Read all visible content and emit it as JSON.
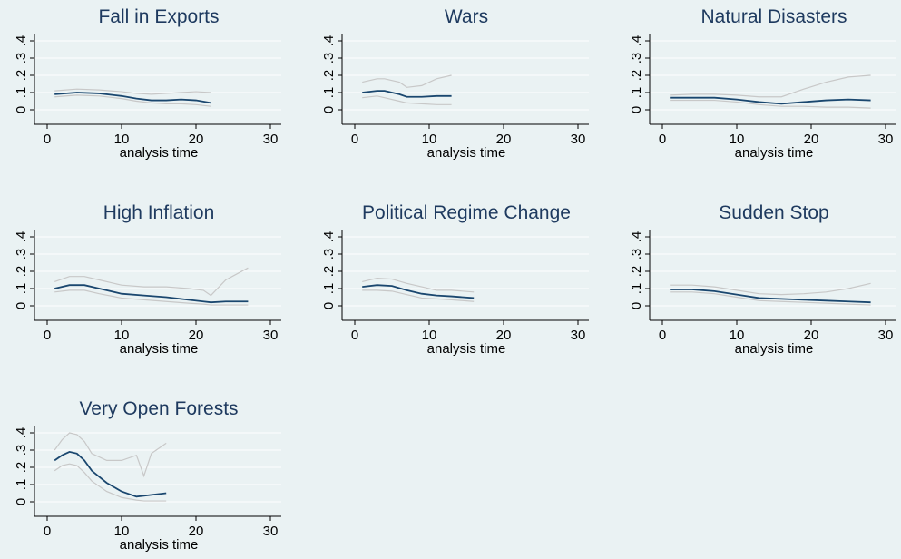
{
  "chart_data": [
    {
      "type": "line",
      "title": "Fall in Exports",
      "xlabel": "analysis time",
      "x": [
        1,
        4,
        7,
        10,
        12,
        14,
        16,
        18,
        20,
        22
      ],
      "series": [
        {
          "color": "#1a476f",
          "values": [
            0.09,
            0.1,
            0.095,
            0.08,
            0.065,
            0.055,
            0.055,
            0.06,
            0.055,
            0.04
          ]
        },
        {
          "color": "#c8c8c8",
          "values": [
            0.11,
            0.12,
            0.115,
            0.105,
            0.095,
            0.09,
            0.095,
            0.1,
            0.105,
            0.1
          ]
        },
        {
          "color": "#c8c8c8",
          "values": [
            0.075,
            0.085,
            0.08,
            0.065,
            0.05,
            0.04,
            0.035,
            0.035,
            0.03,
            0.02
          ]
        }
      ],
      "xlim": [
        0,
        30
      ],
      "xticks": [
        0,
        10,
        20,
        30
      ],
      "ylim": [
        0,
        0.4
      ],
      "yticks": [
        0,
        {
          "value": 0.1,
          "label": ".1"
        },
        {
          "value": 0.2,
          "label": ".2"
        },
        {
          "value": 0.3,
          "label": ".3"
        },
        {
          "value": 0.4,
          "label": ".4"
        }
      ],
      "grid": true
    },
    {
      "type": "line",
      "title": "Wars",
      "xlabel": "analysis time",
      "x": [
        1,
        3,
        4,
        6,
        7,
        9,
        11,
        13
      ],
      "series": [
        {
          "color": "#1a476f",
          "values": [
            0.1,
            0.11,
            0.11,
            0.09,
            0.075,
            0.075,
            0.08,
            0.08
          ]
        },
        {
          "color": "#c8c8c8",
          "values": [
            0.16,
            0.18,
            0.18,
            0.16,
            0.13,
            0.14,
            0.18,
            0.2
          ]
        },
        {
          "color": "#c8c8c8",
          "values": [
            0.07,
            0.08,
            0.07,
            0.05,
            0.04,
            0.035,
            0.03,
            0.03
          ]
        }
      ],
      "xlim": [
        0,
        30
      ],
      "xticks": [
        0,
        10,
        20,
        30
      ],
      "ylim": [
        0,
        0.4
      ],
      "yticks": [
        0,
        {
          "value": 0.1,
          "label": ".1"
        },
        {
          "value": 0.2,
          "label": ".2"
        },
        {
          "value": 0.3,
          "label": ".3"
        },
        {
          "value": 0.4,
          "label": ".4"
        }
      ],
      "grid": true
    },
    {
      "type": "line",
      "title": "Natural Disasters",
      "xlabel": "analysis time",
      "x": [
        1,
        4,
        7,
        10,
        13,
        16,
        19,
        22,
        25,
        28
      ],
      "series": [
        {
          "color": "#1a476f",
          "values": [
            0.07,
            0.07,
            0.07,
            0.06,
            0.045,
            0.035,
            0.045,
            0.055,
            0.06,
            0.055
          ]
        },
        {
          "color": "#c8c8c8",
          "values": [
            0.085,
            0.09,
            0.09,
            0.085,
            0.075,
            0.075,
            0.12,
            0.16,
            0.19,
            0.2
          ]
        },
        {
          "color": "#c8c8c8",
          "values": [
            0.055,
            0.055,
            0.055,
            0.045,
            0.03,
            0.02,
            0.02,
            0.015,
            0.015,
            0.01
          ]
        }
      ],
      "xlim": [
        0,
        30
      ],
      "xticks": [
        0,
        10,
        20,
        30
      ],
      "ylim": [
        0,
        0.4
      ],
      "yticks": [
        0,
        {
          "value": 0.1,
          "label": ".1"
        },
        {
          "value": 0.2,
          "label": ".2"
        },
        {
          "value": 0.3,
          "label": ".3"
        },
        {
          "value": 0.4,
          "label": ".4"
        }
      ],
      "grid": true
    },
    {
      "type": "line",
      "title": "High Inflation",
      "xlabel": "analysis time",
      "x": [
        1,
        3,
        5,
        7,
        10,
        13,
        16,
        19,
        21,
        22,
        24,
        27
      ],
      "series": [
        {
          "color": "#1a476f",
          "values": [
            0.1,
            0.12,
            0.12,
            0.1,
            0.07,
            0.06,
            0.05,
            0.035,
            0.025,
            0.02,
            0.025,
            0.025
          ]
        },
        {
          "color": "#c8c8c8",
          "values": [
            0.14,
            0.17,
            0.17,
            0.15,
            0.12,
            0.11,
            0.11,
            0.1,
            0.09,
            0.06,
            0.15,
            0.22
          ]
        },
        {
          "color": "#c8c8c8",
          "values": [
            0.08,
            0.09,
            0.09,
            0.07,
            0.045,
            0.035,
            0.025,
            0.015,
            0.01,
            0.005,
            0.005,
            0.005
          ]
        }
      ],
      "xlim": [
        0,
        30
      ],
      "xticks": [
        0,
        10,
        20,
        30
      ],
      "ylim": [
        0,
        0.4
      ],
      "yticks": [
        0,
        {
          "value": 0.1,
          "label": ".1"
        },
        {
          "value": 0.2,
          "label": ".2"
        },
        {
          "value": 0.3,
          "label": ".3"
        },
        {
          "value": 0.4,
          "label": ".4"
        }
      ],
      "grid": true
    },
    {
      "type": "line",
      "title": "Political Regime Change",
      "xlabel": "analysis time",
      "x": [
        1,
        3,
        5,
        7,
        9,
        11,
        13,
        16
      ],
      "series": [
        {
          "color": "#1a476f",
          "values": [
            0.11,
            0.12,
            0.115,
            0.09,
            0.07,
            0.06,
            0.055,
            0.045
          ]
        },
        {
          "color": "#c8c8c8",
          "values": [
            0.14,
            0.16,
            0.155,
            0.13,
            0.11,
            0.09,
            0.09,
            0.08
          ]
        },
        {
          "color": "#c8c8c8",
          "values": [
            0.09,
            0.09,
            0.085,
            0.065,
            0.045,
            0.04,
            0.035,
            0.025
          ]
        }
      ],
      "xlim": [
        0,
        30
      ],
      "xticks": [
        0,
        10,
        20,
        30
      ],
      "ylim": [
        0,
        0.4
      ],
      "yticks": [
        0,
        {
          "value": 0.1,
          "label": ".1"
        },
        {
          "value": 0.2,
          "label": ".2"
        },
        {
          "value": 0.3,
          "label": ".3"
        },
        {
          "value": 0.4,
          "label": ".4"
        }
      ],
      "grid": true
    },
    {
      "type": "line",
      "title": "Sudden Stop",
      "xlabel": "analysis time",
      "x": [
        1,
        4,
        7,
        10,
        13,
        16,
        19,
        22,
        25,
        28
      ],
      "series": [
        {
          "color": "#1a476f",
          "values": [
            0.095,
            0.095,
            0.085,
            0.065,
            0.045,
            0.04,
            0.035,
            0.03,
            0.025,
            0.02
          ]
        },
        {
          "color": "#c8c8c8",
          "values": [
            0.12,
            0.12,
            0.11,
            0.09,
            0.07,
            0.065,
            0.07,
            0.08,
            0.1,
            0.13
          ]
        },
        {
          "color": "#c8c8c8",
          "values": [
            0.08,
            0.08,
            0.07,
            0.05,
            0.03,
            0.025,
            0.02,
            0.015,
            0.01,
            0.005
          ]
        }
      ],
      "xlim": [
        0,
        30
      ],
      "xticks": [
        0,
        10,
        20,
        30
      ],
      "ylim": [
        0,
        0.4
      ],
      "yticks": [
        0,
        {
          "value": 0.1,
          "label": ".1"
        },
        {
          "value": 0.2,
          "label": ".2"
        },
        {
          "value": 0.3,
          "label": ".3"
        },
        {
          "value": 0.4,
          "label": ".4"
        }
      ],
      "grid": true
    },
    {
      "type": "line",
      "title": "Very Open Forests",
      "xlabel": "analysis time",
      "x": [
        1,
        2,
        3,
        4,
        5,
        6,
        8,
        10,
        12,
        13,
        14,
        16
      ],
      "series": [
        {
          "color": "#1a476f",
          "values": [
            0.24,
            0.27,
            0.29,
            0.28,
            0.24,
            0.18,
            0.11,
            0.06,
            0.03,
            0.035,
            0.04,
            0.05
          ]
        },
        {
          "color": "#c8c8c8",
          "values": [
            0.3,
            0.36,
            0.4,
            0.39,
            0.35,
            0.28,
            0.24,
            0.24,
            0.27,
            0.15,
            0.28,
            0.34
          ]
        },
        {
          "color": "#c8c8c8",
          "values": [
            0.18,
            0.21,
            0.22,
            0.21,
            0.17,
            0.12,
            0.06,
            0.025,
            0.01,
            0.005,
            0.005,
            0.005
          ]
        }
      ],
      "xlim": [
        0,
        30
      ],
      "xticks": [
        0,
        10,
        20,
        30
      ],
      "ylim": [
        0,
        0.4
      ],
      "yticks": [
        0,
        {
          "value": 0.1,
          "label": ".1"
        },
        {
          "value": 0.2,
          "label": ".2"
        },
        {
          "value": 0.3,
          "label": ".3"
        },
        {
          "value": 0.4,
          "label": ".4"
        }
      ],
      "grid": true
    }
  ]
}
